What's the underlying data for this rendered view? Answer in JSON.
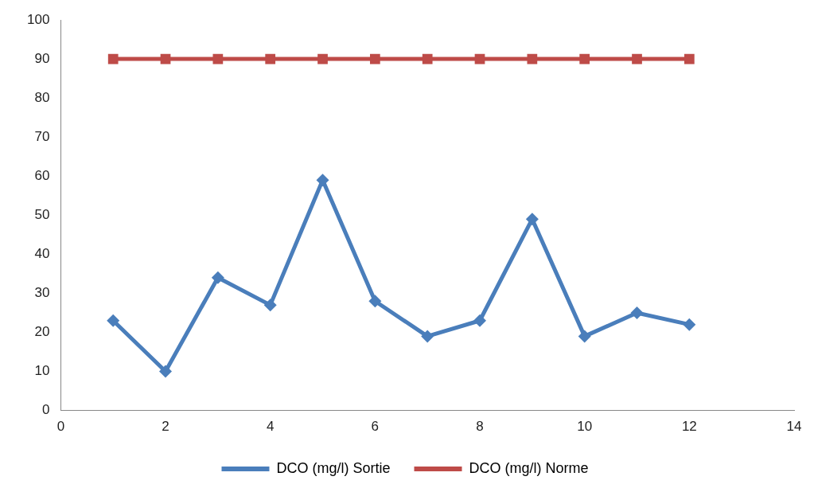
{
  "chart_data": {
    "type": "line",
    "x": [
      1,
      2,
      3,
      4,
      5,
      6,
      7,
      8,
      9,
      10,
      11,
      12
    ],
    "series": [
      {
        "name": "DCO (mg/l) Sortie",
        "color": "#4a7ebb",
        "marker": "diamond",
        "values": [
          23,
          10,
          34,
          27,
          59,
          28,
          19,
          23,
          49,
          19,
          25,
          22
        ]
      },
      {
        "name": "DCO (mg/l) Norme",
        "color": "#be4b48",
        "marker": "square",
        "values": [
          90,
          90,
          90,
          90,
          90,
          90,
          90,
          90,
          90,
          90,
          90,
          90
        ]
      }
    ],
    "xlim": [
      0,
      14
    ],
    "xticks": [
      0,
      2,
      4,
      6,
      8,
      10,
      12,
      14
    ],
    "ylim": [
      0,
      100
    ],
    "yticks": [
      0,
      10,
      20,
      30,
      40,
      50,
      60,
      70,
      80,
      90,
      100
    ],
    "grid": false,
    "legend": "bottom",
    "line_style": "solid"
  }
}
